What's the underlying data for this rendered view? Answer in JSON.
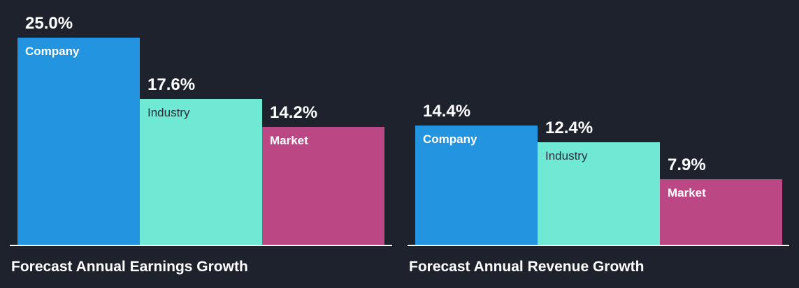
{
  "colors": {
    "background": "#1d222d",
    "company": "#2394e0",
    "industry": "#6fe8d4",
    "market": "#bb4784",
    "text": "#ffffff"
  },
  "chart_data": [
    {
      "type": "bar",
      "title": "Forecast Annual Earnings Growth",
      "categories": [
        "Company",
        "Industry",
        "Market"
      ],
      "values": [
        25.0,
        17.6,
        14.2
      ],
      "value_labels": [
        "25.0%",
        "17.6%",
        "14.2%"
      ],
      "ylim": [
        0,
        25.0
      ],
      "grid": false,
      "legend": "none"
    },
    {
      "type": "bar",
      "title": "Forecast Annual Revenue Growth",
      "categories": [
        "Company",
        "Industry",
        "Market"
      ],
      "values": [
        14.4,
        12.4,
        7.9
      ],
      "value_labels": [
        "14.4%",
        "12.4%",
        "7.9%"
      ],
      "ylim": [
        0,
        25.0
      ],
      "grid": false,
      "legend": "none"
    }
  ]
}
